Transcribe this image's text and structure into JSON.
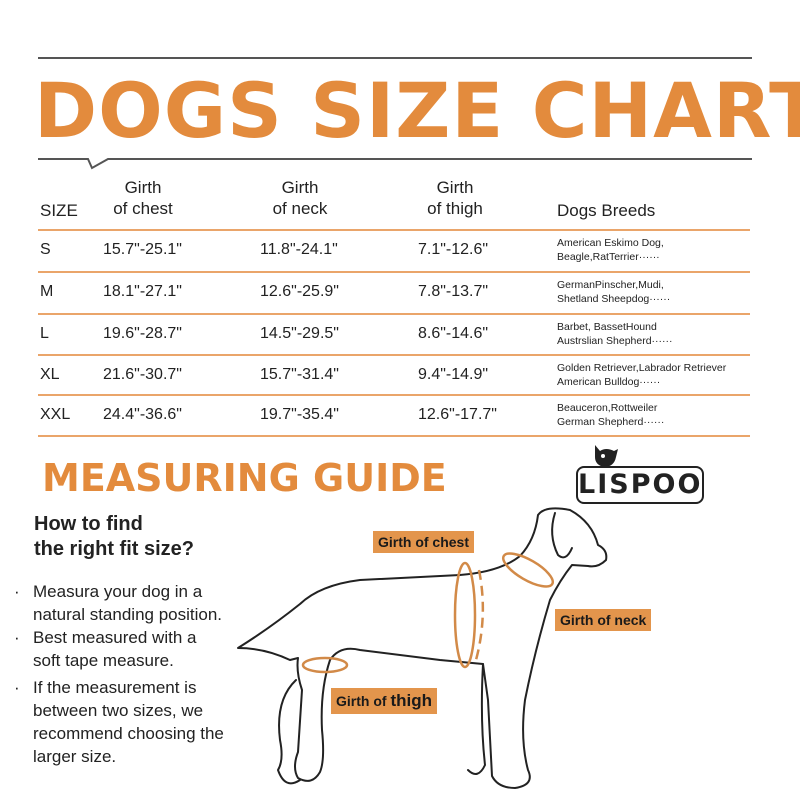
{
  "title": "DOGS SIZE CHART",
  "table": {
    "headers": {
      "size": "SIZE",
      "chest": [
        "Girth",
        "of chest"
      ],
      "neck": [
        "Girth",
        "of neck"
      ],
      "thigh": [
        "Girth",
        "of thigh"
      ],
      "breeds": "Dogs Breeds"
    },
    "rows": [
      {
        "size": "S",
        "chest": "15.7\"-25.1\"",
        "neck": "11.8\"-24.1\"",
        "thigh": "7.1\"-12.6\"",
        "breeds": [
          "American Eskimo Dog,",
          "Beagle,RatTerrier······"
        ]
      },
      {
        "size": "M",
        "chest": "18.1\"-27.1\"",
        "neck": "12.6\"-25.9\"",
        "thigh": "7.8\"-13.7\"",
        "breeds": [
          "GermanPinscher,Mudi,",
          "Shetland Sheepdog······"
        ]
      },
      {
        "size": "L",
        "chest": "19.6\"-28.7\"",
        "neck": "14.5\"-29.5\"",
        "thigh": "8.6\"-14.6\"",
        "breeds": [
          "Barbet,  BassetHound",
          "Austrslian Shepherd······"
        ]
      },
      {
        "size": "XL",
        "chest": "21.6\"-30.7\"",
        "neck": "15.7\"-31.4\"",
        "thigh": "9.4\"-14.9\"",
        "breeds": [
          "Golden Retriever,Labrador Retriever",
          "American Bulldog······"
        ]
      },
      {
        "size": "XXL",
        "chest": "24.4\"-36.6\"",
        "neck": "19.7\"-35.4\"",
        "thigh": "12.6\"-17.7\"",
        "breeds": [
          "Beauceron,Rottweiler",
          "German Shepherd······"
        ]
      }
    ]
  },
  "guide": {
    "title": "MEASURING GUIDE",
    "subtitle": [
      "How to find",
      "the right fit size?"
    ],
    "bullets": [
      "Measura your dog in a natural standing position.",
      "Best measured with a soft tape measure.",
      "If the measurement is between two sizes, we recommend choosing the larger size."
    ],
    "labels": {
      "chest": "Girth of chest",
      "neck": "Girth of neck",
      "thigh_a": "Girth of ",
      "thigh_b": "thigh"
    }
  },
  "logo": "LISPOO",
  "colors": {
    "accent": "#e38b3d"
  }
}
